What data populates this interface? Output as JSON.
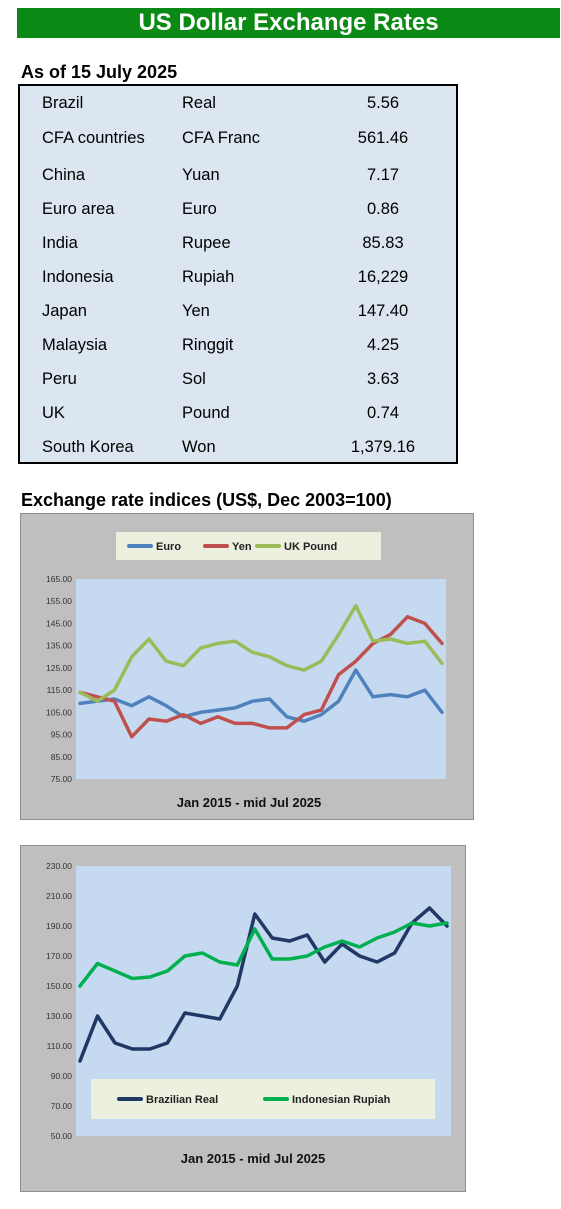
{
  "header": {
    "title": "US Dollar Exchange Rates"
  },
  "rates": {
    "as_of": "As of 15 July 2025",
    "rows": [
      {
        "country": "Brazil",
        "currency": "Real",
        "value": "5.56"
      },
      {
        "country": "CFA countries",
        "currency": "CFA Franc",
        "value": "561.46"
      },
      {
        "country": "China",
        "currency": "Yuan",
        "value": "7.17"
      },
      {
        "country": "Euro area",
        "currency": "Euro",
        "value": "0.86"
      },
      {
        "country": "India",
        "currency": "Rupee",
        "value": "85.83"
      },
      {
        "country": "Indonesia",
        "currency": "Rupiah",
        "value": "16,229"
      },
      {
        "country": "Japan",
        "currency": "Yen",
        "value": "147.40"
      },
      {
        "country": "Malaysia",
        "currency": "Ringgit",
        "value": "4.25"
      },
      {
        "country": "Peru",
        "currency": "Sol",
        "value": "3.63"
      },
      {
        "country": "UK",
        "currency": "Pound",
        "value": "0.74"
      },
      {
        "country": "South Korea",
        "currency": "Won",
        "value": "1,379.16"
      }
    ]
  },
  "indices_title": "Exchange rate indices (US$, Dec 2003=100)",
  "chart_data": [
    {
      "type": "line",
      "xlabel": "Jan 2015 - mid Jul 2025",
      "ylim": [
        75,
        165
      ],
      "yticks": [
        "75.00",
        "85.00",
        "95.00",
        "105.00",
        "115.00",
        "125.00",
        "135.00",
        "145.00",
        "155.00",
        "165.00"
      ],
      "x": [
        2015.0,
        2015.5,
        2016.0,
        2016.5,
        2017.0,
        2017.5,
        2018.0,
        2018.5,
        2019.0,
        2019.5,
        2020.0,
        2020.5,
        2021.0,
        2021.5,
        2022.0,
        2022.5,
        2023.0,
        2023.5,
        2024.0,
        2024.5,
        2025.0,
        2025.5
      ],
      "legend_position": "top",
      "grid": false,
      "series": [
        {
          "name": "Euro",
          "color": "#4f81bd",
          "values": [
            109,
            110,
            111,
            108,
            112,
            108,
            103,
            105,
            106,
            107,
            110,
            111,
            103,
            101,
            104,
            110,
            124,
            112,
            113,
            112,
            115,
            105
          ]
        },
        {
          "name": "Yen",
          "color": "#c0504d",
          "values": [
            114,
            112,
            110,
            94,
            102,
            101,
            104,
            100,
            103,
            100,
            100,
            98,
            98,
            104,
            106,
            122,
            128,
            136,
            140,
            148,
            145,
            136
          ]
        },
        {
          "name": "UK Pound",
          "color": "#9bbb59",
          "values": [
            114,
            110,
            115,
            130,
            138,
            128,
            126,
            134,
            136,
            137,
            132,
            130,
            126,
            124,
            128,
            140,
            153,
            137,
            138,
            136,
            137,
            127
          ]
        }
      ]
    },
    {
      "type": "line",
      "xlabel": "Jan 2015 -  mid Jul 2025",
      "ylim": [
        50,
        230
      ],
      "yticks": [
        "50.00",
        "70.00",
        "90.00",
        "110.00",
        "130.00",
        "150.00",
        "170.00",
        "190.00",
        "210.00",
        "230.00"
      ],
      "x": [
        2015.0,
        2015.5,
        2016.0,
        2016.5,
        2017.0,
        2017.5,
        2018.0,
        2018.5,
        2019.0,
        2019.5,
        2020.0,
        2020.5,
        2021.0,
        2021.5,
        2022.0,
        2022.5,
        2023.0,
        2023.5,
        2024.0,
        2024.5,
        2025.0,
        2025.5
      ],
      "legend_position": "bottom",
      "grid": false,
      "series": [
        {
          "name": "Brazilian Real",
          "color": "#1f3864",
          "values": [
            100,
            130,
            112,
            108,
            108,
            112,
            132,
            130,
            128,
            150,
            198,
            182,
            180,
            184,
            166,
            178,
            170,
            166,
            172,
            192,
            202,
            190
          ]
        },
        {
          "name": "Indonesian Rupiah",
          "color": "#00b050",
          "values": [
            150,
            165,
            160,
            155,
            156,
            160,
            170,
            172,
            166,
            164,
            188,
            168,
            168,
            170,
            176,
            180,
            176,
            182,
            186,
            192,
            190,
            192
          ]
        }
      ]
    }
  ]
}
